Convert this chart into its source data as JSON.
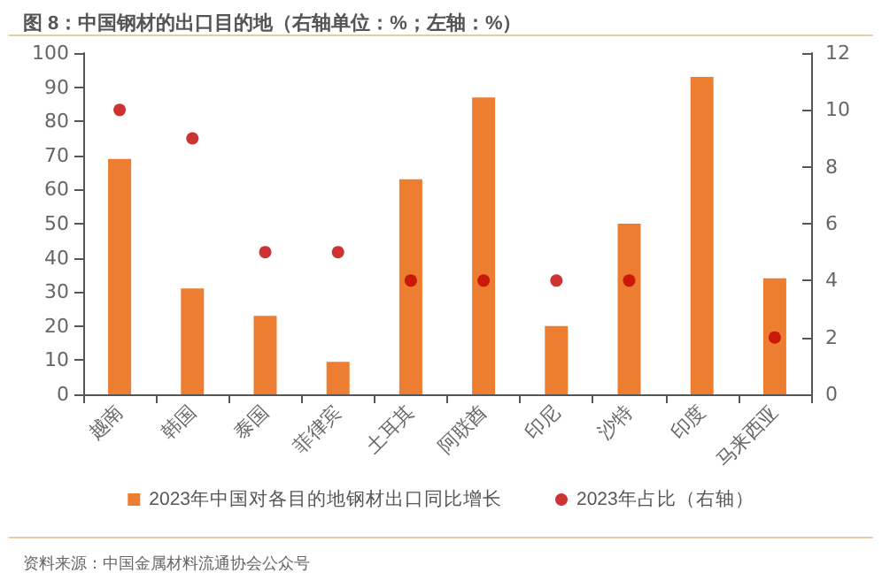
{
  "chart_data": {
    "type": "bar",
    "title": "图 8：中国钢材的出口目的地（右轴单位：%；左轴：%）",
    "categories": [
      "越南",
      "韩国",
      "泰国",
      "菲律宾",
      "土耳其",
      "阿联酋",
      "印尼",
      "沙特",
      "印度",
      "马来西亚"
    ],
    "series": [
      {
        "name": "2023年中国对各目的地钢材出口同比增长",
        "color": "#ed7d31",
        "values": [
          69,
          31,
          23,
          9.5,
          63,
          87,
          20,
          50,
          93,
          34
        ]
      },
      {
        "name": "2023年占比（右轴）",
        "type": "scatter",
        "axis": "y2",
        "color": "#c00000",
        "values": [
          10,
          9,
          5,
          5,
          4,
          4,
          4,
          4,
          null,
          2
        ]
      }
    ],
    "ylim": [
      0,
      100
    ],
    "yticks": [
      0,
      10,
      20,
      30,
      40,
      50,
      60,
      70,
      80,
      90,
      100
    ],
    "y2lim": [
      0,
      12
    ],
    "y2ticks": [
      0,
      2,
      4,
      6,
      8,
      10,
      12
    ],
    "grid": false,
    "legend": "bottom",
    "marker": "circle",
    "annotations": [
      "资料来源：中国金属材料流通协会公众号"
    ]
  }
}
